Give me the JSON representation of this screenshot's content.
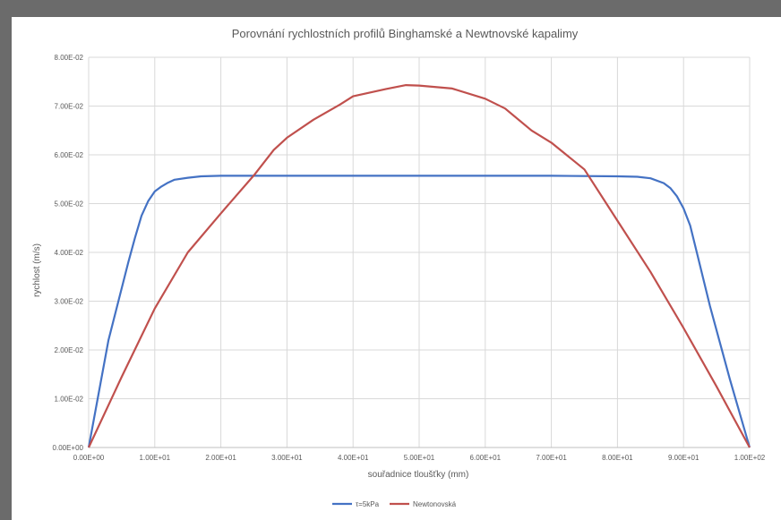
{
  "chart_data": {
    "type": "line",
    "title": "Porovnání rychlostních profilů Binghamské a Newtnovské kapalimy",
    "xlabel": "souřadnice tloušťky (mm)",
    "ylabel": "rychlost (m/s)",
    "xlim": [
      0,
      100
    ],
    "ylim": [
      0,
      0.08
    ],
    "x_ticks": [
      "0.00E+00",
      "1.00E+01",
      "2.00E+01",
      "3.00E+01",
      "4.00E+01",
      "5.00E+01",
      "6.00E+01",
      "7.00E+01",
      "8.00E+01",
      "9.00E+01",
      "1.00E+02"
    ],
    "y_ticks": [
      "0.00E+00",
      "1.00E-02",
      "2.00E-02",
      "3.00E-02",
      "4.00E-02",
      "5.00E-02",
      "6.00E-02",
      "7.00E-02",
      "8.00E-02"
    ],
    "x_tick_values": [
      0,
      10,
      20,
      30,
      40,
      50,
      60,
      70,
      80,
      90,
      100
    ],
    "y_tick_values": [
      0,
      0.01,
      0.02,
      0.03,
      0.04,
      0.05,
      0.06,
      0.07,
      0.08
    ],
    "grid": true,
    "legend_position": "bottom",
    "series": [
      {
        "name": "τ=5kPa",
        "color": "#4472c4",
        "x": [
          0,
          3,
          6,
          7,
          8,
          9,
          10,
          11,
          12,
          13,
          15,
          17,
          20,
          30,
          40,
          50,
          60,
          70,
          80,
          83,
          85,
          87,
          88,
          89,
          90,
          91,
          92,
          94,
          97,
          100
        ],
        "y": [
          0,
          0.022,
          0.038,
          0.043,
          0.0475,
          0.0505,
          0.0525,
          0.0535,
          0.0543,
          0.0549,
          0.0553,
          0.0556,
          0.0557,
          0.0557,
          0.0557,
          0.0557,
          0.0557,
          0.0557,
          0.0556,
          0.0555,
          0.0552,
          0.0542,
          0.0532,
          0.0515,
          0.049,
          0.0455,
          0.04,
          0.029,
          0.014,
          0
        ]
      },
      {
        "name": "Newtonovská",
        "color": "#c0504d",
        "x": [
          0,
          5,
          10,
          15,
          20,
          25,
          28,
          30,
          34,
          38,
          40,
          45,
          48,
          50,
          55,
          60,
          63,
          67,
          70,
          75,
          80,
          85,
          90,
          95,
          100
        ],
        "y": [
          0,
          0.0145,
          0.0285,
          0.04,
          0.048,
          0.0558,
          0.061,
          0.0635,
          0.0672,
          0.0703,
          0.072,
          0.0735,
          0.0743,
          0.0742,
          0.0736,
          0.0715,
          0.0695,
          0.065,
          0.0625,
          0.057,
          0.0465,
          0.036,
          0.0245,
          0.0125,
          0
        ]
      }
    ]
  }
}
